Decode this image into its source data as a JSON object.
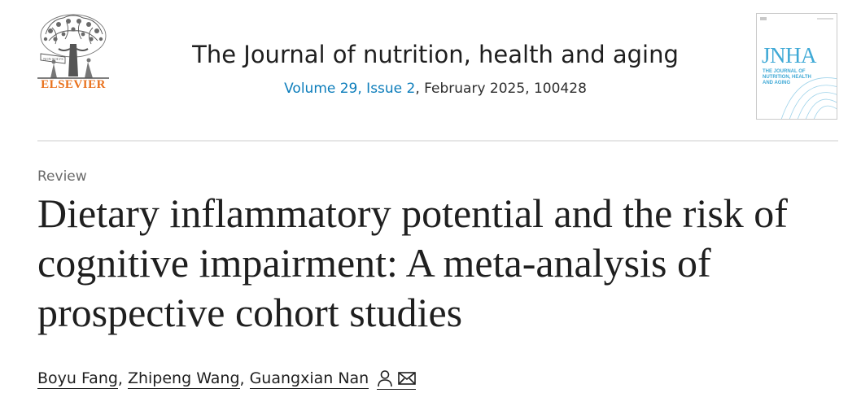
{
  "publisher": {
    "name": "ELSEVIER",
    "logo_icon": "elsevier-tree-logo",
    "brand_color": "#e9711c"
  },
  "journal": {
    "title": "The Journal of nutrition, health and aging",
    "volume_issue_link": "Volume 29, Issue 2",
    "issue_details": ", February 2025, 100428",
    "link_color": "#0c7dbb"
  },
  "cover": {
    "logo_text": "JNHA",
    "subtitle": "THE JOURNAL OF NUTRITION, HEALTH AND AGING",
    "accent_color": "#3fa9d6"
  },
  "article": {
    "type": "Review",
    "title": "Dietary inflammatory potential and the risk of cognitive impairment: A meta-analysis of prospective cohort studies",
    "authors": [
      {
        "name": "Boyu Fang",
        "sep": ","
      },
      {
        "name": "Zhipeng Wang",
        "sep": ","
      },
      {
        "name": "Guangxian Nan",
        "sep": ""
      }
    ],
    "author_icons": [
      "person-icon",
      "envelope-icon"
    ]
  }
}
